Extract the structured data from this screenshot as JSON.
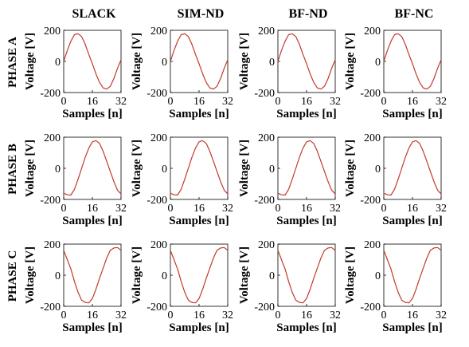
{
  "columns": [
    "SLACK",
    "SIM-ND",
    "BF-ND",
    "BF-NC"
  ],
  "rows": [
    "PHASE A",
    "PHASE B",
    "PHASE C"
  ],
  "colors": {
    "line": "#c0392b",
    "axis": "#000000"
  },
  "chart_data": {
    "type": "line",
    "layout": "3x4 small multiples",
    "xlabel": "Samples [n]",
    "ylabel": "Voltage [V]",
    "xlim": [
      0,
      32
    ],
    "ylim": [
      -200,
      200
    ],
    "xticks": [
      0,
      16,
      32
    ],
    "yticks": [
      -200,
      0,
      200
    ],
    "grid": false,
    "x": [
      0,
      2,
      4,
      6,
      8,
      10,
      12,
      14,
      16,
      18,
      20,
      22,
      24,
      26,
      28,
      30,
      32
    ],
    "series": [
      {
        "name": "PHASE A",
        "values": [
          0,
          70,
          130,
          172,
          178,
          160,
          110,
          45,
          -15,
          -80,
          -135,
          -170,
          -178,
          -160,
          -110,
          -45,
          10
        ]
      },
      {
        "name": "PHASE B",
        "values": [
          -160,
          -170,
          -172,
          -135,
          -70,
          0,
          70,
          130,
          170,
          178,
          160,
          110,
          45,
          -20,
          -85,
          -140,
          -165
        ]
      },
      {
        "name": "PHASE C",
        "values": [
          160,
          100,
          40,
          -40,
          -110,
          -160,
          -175,
          -178,
          -150,
          -90,
          -20,
          45,
          110,
          160,
          175,
          178,
          160
        ]
      }
    ],
    "panels": [
      {
        "row": "PHASE A",
        "column": "SLACK",
        "series": "PHASE A"
      },
      {
        "row": "PHASE A",
        "column": "SIM-ND",
        "series": "PHASE A"
      },
      {
        "row": "PHASE A",
        "column": "BF-ND",
        "series": "PHASE A"
      },
      {
        "row": "PHASE A",
        "column": "BF-NC",
        "series": "PHASE A"
      },
      {
        "row": "PHASE B",
        "column": "SLACK",
        "series": "PHASE B"
      },
      {
        "row": "PHASE B",
        "column": "SIM-ND",
        "series": "PHASE B"
      },
      {
        "row": "PHASE B",
        "column": "BF-ND",
        "series": "PHASE B"
      },
      {
        "row": "PHASE B",
        "column": "BF-NC",
        "series": "PHASE B"
      },
      {
        "row": "PHASE C",
        "column": "SLACK",
        "series": "PHASE C"
      },
      {
        "row": "PHASE C",
        "column": "SIM-ND",
        "series": "PHASE C"
      },
      {
        "row": "PHASE C",
        "column": "BF-ND",
        "series": "PHASE C"
      },
      {
        "row": "PHASE C",
        "column": "BF-NC",
        "series": "PHASE C"
      }
    ]
  }
}
